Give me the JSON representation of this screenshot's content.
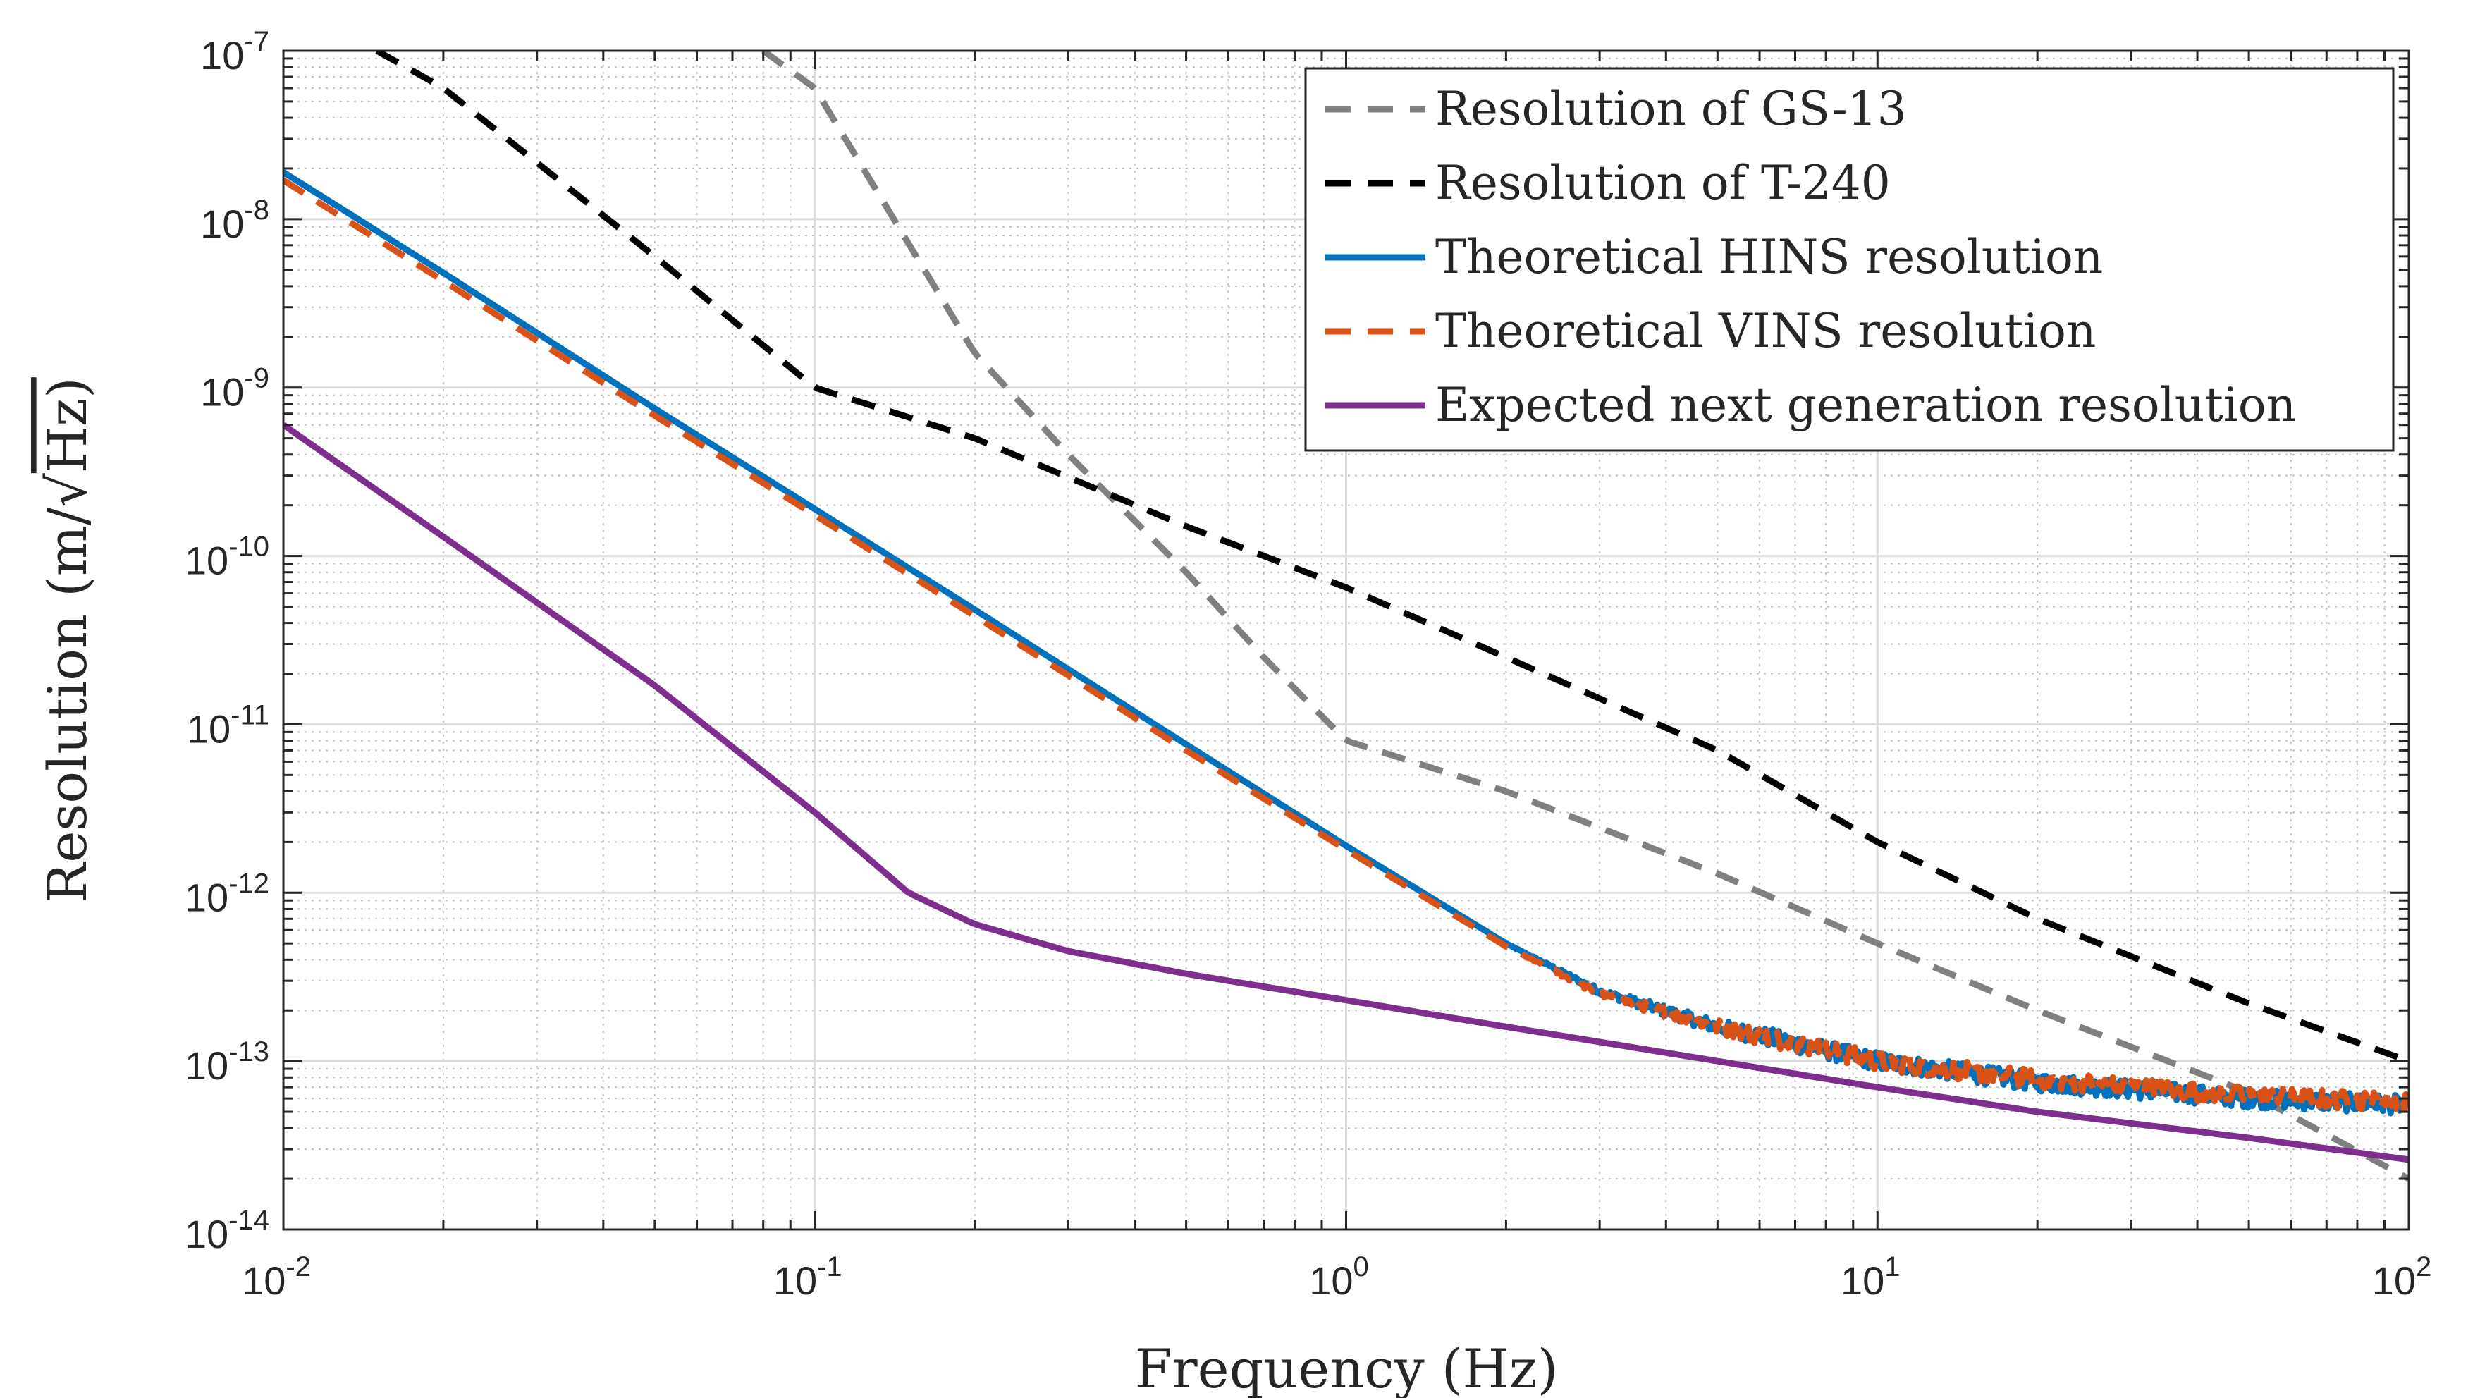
{
  "chart_data": {
    "type": "line",
    "xlabel": "Frequency (Hz)",
    "ylabel_prefix": "Resolution (m/",
    "ylabel_radical": "√",
    "ylabel_suffix": "Hz)",
    "x_scale": "log",
    "y_scale": "log",
    "xlim": [
      0.01,
      100
    ],
    "ylim": [
      1e-14,
      1e-07
    ],
    "grid": true,
    "minor_grid": true,
    "legend_position": "top-right",
    "x_ticks": [
      {
        "base": "10",
        "exp": "-2",
        "value": 0.01
      },
      {
        "base": "10",
        "exp": "-1",
        "value": 0.1
      },
      {
        "base": "10",
        "exp": "0",
        "value": 1
      },
      {
        "base": "10",
        "exp": "1",
        "value": 10
      },
      {
        "base": "10",
        "exp": "2",
        "value": 100
      }
    ],
    "y_ticks": [
      {
        "base": "10",
        "exp": "-7",
        "value": 1e-07
      },
      {
        "base": "10",
        "exp": "-8",
        "value": 1e-08
      },
      {
        "base": "10",
        "exp": "-9",
        "value": 1e-09
      },
      {
        "base": "10",
        "exp": "-10",
        "value": 1e-10
      },
      {
        "base": "10",
        "exp": "-11",
        "value": 1e-11
      },
      {
        "base": "10",
        "exp": "-12",
        "value": 1e-12
      },
      {
        "base": "10",
        "exp": "-13",
        "value": 1e-13
      },
      {
        "base": "10",
        "exp": "-14",
        "value": 1e-14
      }
    ],
    "series": [
      {
        "name": "Resolution of GS-13",
        "color": "#808080",
        "style": "dashed",
        "x": [
          0.08,
          0.1,
          0.2,
          0.3,
          0.5,
          0.7,
          1,
          2,
          5,
          10,
          20,
          50,
          100
        ],
        "y": [
          1e-07,
          6e-08,
          1.6e-09,
          4e-10,
          8e-11,
          2.5e-11,
          8e-12,
          4e-12,
          1.3e-12,
          5e-13,
          2e-13,
          6.5e-14,
          2e-14
        ]
      },
      {
        "name": "Resolution of T-240",
        "color": "#000000",
        "style": "dashed",
        "x": [
          0.015,
          0.02,
          0.05,
          0.1,
          0.2,
          0.5,
          1,
          2,
          5,
          10,
          20,
          50,
          100
        ],
        "y": [
          1e-07,
          6e-08,
          6e-09,
          1e-09,
          5e-10,
          1.5e-10,
          6.5e-11,
          2.5e-11,
          7e-12,
          2e-12,
          7e-13,
          2.2e-13,
          1e-13
        ]
      },
      {
        "name": "Theoretical HINS resolution",
        "color": "#0072BD",
        "style": "solid",
        "noisy_from": 2,
        "x": [
          0.01,
          0.02,
          0.05,
          0.1,
          0.2,
          0.5,
          1,
          2,
          3,
          5,
          10,
          20,
          50,
          100
        ],
        "y": [
          1.9e-08,
          4.8e-09,
          7.5e-10,
          1.9e-10,
          4.8e-11,
          7.6e-12,
          1.9e-12,
          5e-13,
          2.6e-13,
          1.6e-13,
          1e-13,
          7.5e-14,
          6e-14,
          5.5e-14
        ]
      },
      {
        "name": "Theoretical VINS resolution",
        "color": "#D95319",
        "style": "dashed",
        "noisy_from": 2,
        "x": [
          0.01,
          0.02,
          0.05,
          0.1,
          0.2,
          0.5,
          1,
          2,
          3,
          5,
          10,
          20,
          50,
          100
        ],
        "y": [
          1.7e-08,
          4.3e-09,
          6.8e-10,
          1.75e-10,
          4.4e-11,
          7e-12,
          1.8e-12,
          4.8e-13,
          2.5e-13,
          1.6e-13,
          1e-13,
          7.8e-14,
          6.2e-14,
          5.7e-14
        ]
      },
      {
        "name": "Expected next generation resolution",
        "color": "#7E2F8E",
        "style": "solid",
        "x": [
          0.01,
          0.02,
          0.05,
          0.1,
          0.15,
          0.2,
          0.3,
          0.5,
          1,
          2,
          5,
          10,
          20,
          50,
          100
        ],
        "y": [
          6e-10,
          1.3e-10,
          1.7e-11,
          3e-12,
          1e-12,
          6.5e-13,
          4.5e-13,
          3.3e-13,
          2.3e-13,
          1.6e-13,
          1e-13,
          7e-14,
          5e-14,
          3.5e-14,
          2.6e-14
        ]
      }
    ]
  }
}
